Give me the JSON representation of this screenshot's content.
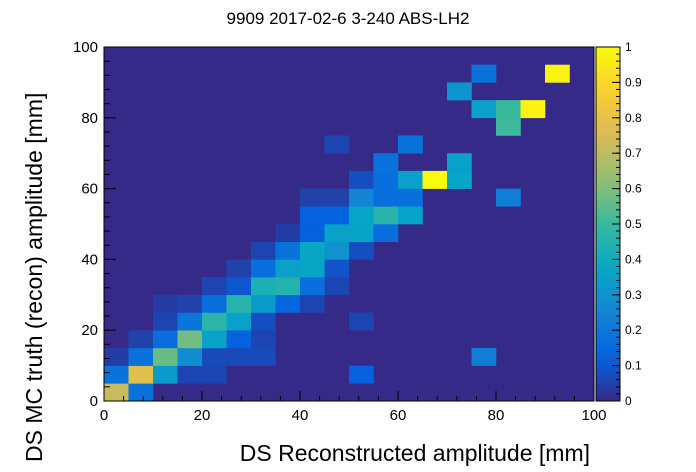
{
  "chart_data": {
    "type": "heatmap",
    "title": "9909 2017-02-6 3-240 ABS-LH2",
    "xlabel": "DS Reconstructed amplitude [mm]",
    "ylabel": "DS MC truth (recon) amplitude [mm]",
    "xlim": [
      0,
      100
    ],
    "ylim": [
      0,
      100
    ],
    "x_ticks": [
      "0",
      "20",
      "40",
      "60",
      "80",
      "100"
    ],
    "y_ticks": [
      "0",
      "20",
      "40",
      "60",
      "80",
      "100"
    ],
    "bin_width": 5,
    "background_value": 0.0,
    "colorbar": {
      "range": [
        0,
        1
      ],
      "ticks": [
        "0",
        "0.1",
        "0.2",
        "0.3",
        "0.4",
        "0.5",
        "0.6",
        "0.7",
        "0.8",
        "0.9",
        "1"
      ]
    },
    "palette": [
      "#352a87",
      "#0363e1",
      "#1485d4",
      "#06a7c6",
      "#38b99e",
      "#92bf73",
      "#d9ba56",
      "#fcce2e",
      "#f9fb0e"
    ],
    "cells": [
      {
        "x": 0,
        "y": 0,
        "v": 0.72
      },
      {
        "x": 5,
        "y": 0,
        "v": 0.18
      },
      {
        "x": 0,
        "y": 5,
        "v": 0.18
      },
      {
        "x": 5,
        "y": 5,
        "v": 0.78
      },
      {
        "x": 10,
        "y": 5,
        "v": 0.33
      },
      {
        "x": 15,
        "y": 5,
        "v": 0.06
      },
      {
        "x": 20,
        "y": 5,
        "v": 0.06
      },
      {
        "x": 50,
        "y": 5,
        "v": 0.12
      },
      {
        "x": 0,
        "y": 10,
        "v": 0.04
      },
      {
        "x": 5,
        "y": 10,
        "v": 0.18
      },
      {
        "x": 10,
        "y": 10,
        "v": 0.57
      },
      {
        "x": 15,
        "y": 10,
        "v": 0.28
      },
      {
        "x": 20,
        "y": 10,
        "v": 0.07
      },
      {
        "x": 25,
        "y": 10,
        "v": 0.07
      },
      {
        "x": 30,
        "y": 10,
        "v": 0.07
      },
      {
        "x": 75,
        "y": 10,
        "v": 0.22
      },
      {
        "x": 5,
        "y": 15,
        "v": 0.05
      },
      {
        "x": 10,
        "y": 15,
        "v": 0.16
      },
      {
        "x": 15,
        "y": 15,
        "v": 0.58
      },
      {
        "x": 20,
        "y": 15,
        "v": 0.36
      },
      {
        "x": 25,
        "y": 15,
        "v": 0.12
      },
      {
        "x": 30,
        "y": 15,
        "v": 0.06
      },
      {
        "x": 10,
        "y": 20,
        "v": 0.06
      },
      {
        "x": 15,
        "y": 20,
        "v": 0.19
      },
      {
        "x": 20,
        "y": 20,
        "v": 0.47
      },
      {
        "x": 25,
        "y": 20,
        "v": 0.35
      },
      {
        "x": 30,
        "y": 20,
        "v": 0.08
      },
      {
        "x": 50,
        "y": 20,
        "v": 0.06
      },
      {
        "x": 10,
        "y": 25,
        "v": 0.04
      },
      {
        "x": 15,
        "y": 25,
        "v": 0.05
      },
      {
        "x": 20,
        "y": 25,
        "v": 0.17
      },
      {
        "x": 25,
        "y": 25,
        "v": 0.46
      },
      {
        "x": 30,
        "y": 25,
        "v": 0.33
      },
      {
        "x": 35,
        "y": 25,
        "v": 0.14
      },
      {
        "x": 40,
        "y": 25,
        "v": 0.06
      },
      {
        "x": 20,
        "y": 30,
        "v": 0.06
      },
      {
        "x": 25,
        "y": 30,
        "v": 0.1
      },
      {
        "x": 30,
        "y": 30,
        "v": 0.43
      },
      {
        "x": 35,
        "y": 30,
        "v": 0.45
      },
      {
        "x": 40,
        "y": 30,
        "v": 0.17
      },
      {
        "x": 45,
        "y": 30,
        "v": 0.06
      },
      {
        "x": 25,
        "y": 35,
        "v": 0.05
      },
      {
        "x": 30,
        "y": 35,
        "v": 0.17
      },
      {
        "x": 35,
        "y": 35,
        "v": 0.35
      },
      {
        "x": 40,
        "y": 35,
        "v": 0.37
      },
      {
        "x": 45,
        "y": 35,
        "v": 0.09
      },
      {
        "x": 30,
        "y": 40,
        "v": 0.06
      },
      {
        "x": 35,
        "y": 40,
        "v": 0.18
      },
      {
        "x": 40,
        "y": 40,
        "v": 0.38
      },
      {
        "x": 45,
        "y": 40,
        "v": 0.3
      },
      {
        "x": 50,
        "y": 40,
        "v": 0.08
      },
      {
        "x": 35,
        "y": 45,
        "v": 0.04
      },
      {
        "x": 40,
        "y": 45,
        "v": 0.12
      },
      {
        "x": 45,
        "y": 45,
        "v": 0.35
      },
      {
        "x": 50,
        "y": 45,
        "v": 0.36
      },
      {
        "x": 55,
        "y": 45,
        "v": 0.16
      },
      {
        "x": 40,
        "y": 50,
        "v": 0.12
      },
      {
        "x": 45,
        "y": 50,
        "v": 0.13
      },
      {
        "x": 50,
        "y": 50,
        "v": 0.37
      },
      {
        "x": 55,
        "y": 50,
        "v": 0.46
      },
      {
        "x": 60,
        "y": 50,
        "v": 0.36
      },
      {
        "x": 40,
        "y": 55,
        "v": 0.05
      },
      {
        "x": 45,
        "y": 55,
        "v": 0.05
      },
      {
        "x": 50,
        "y": 55,
        "v": 0.25
      },
      {
        "x": 55,
        "y": 55,
        "v": 0.16
      },
      {
        "x": 60,
        "y": 55,
        "v": 0.17
      },
      {
        "x": 80,
        "y": 55,
        "v": 0.22
      },
      {
        "x": 50,
        "y": 60,
        "v": 0.08
      },
      {
        "x": 55,
        "y": 60,
        "v": 0.17
      },
      {
        "x": 60,
        "y": 60,
        "v": 0.35
      },
      {
        "x": 65,
        "y": 60,
        "v": 1.0
      },
      {
        "x": 70,
        "y": 60,
        "v": 0.37
      },
      {
        "x": 55,
        "y": 65,
        "v": 0.18
      },
      {
        "x": 70,
        "y": 65,
        "v": 0.35
      },
      {
        "x": 45,
        "y": 70,
        "v": 0.06
      },
      {
        "x": 60,
        "y": 70,
        "v": 0.18
      },
      {
        "x": 80,
        "y": 75,
        "v": 0.51
      },
      {
        "x": 75,
        "y": 80,
        "v": 0.35
      },
      {
        "x": 80,
        "y": 80,
        "v": 0.5
      },
      {
        "x": 85,
        "y": 80,
        "v": 0.98
      },
      {
        "x": 70,
        "y": 85,
        "v": 0.3
      },
      {
        "x": 75,
        "y": 90,
        "v": 0.18
      },
      {
        "x": 90,
        "y": 90,
        "v": 0.98
      }
    ]
  }
}
